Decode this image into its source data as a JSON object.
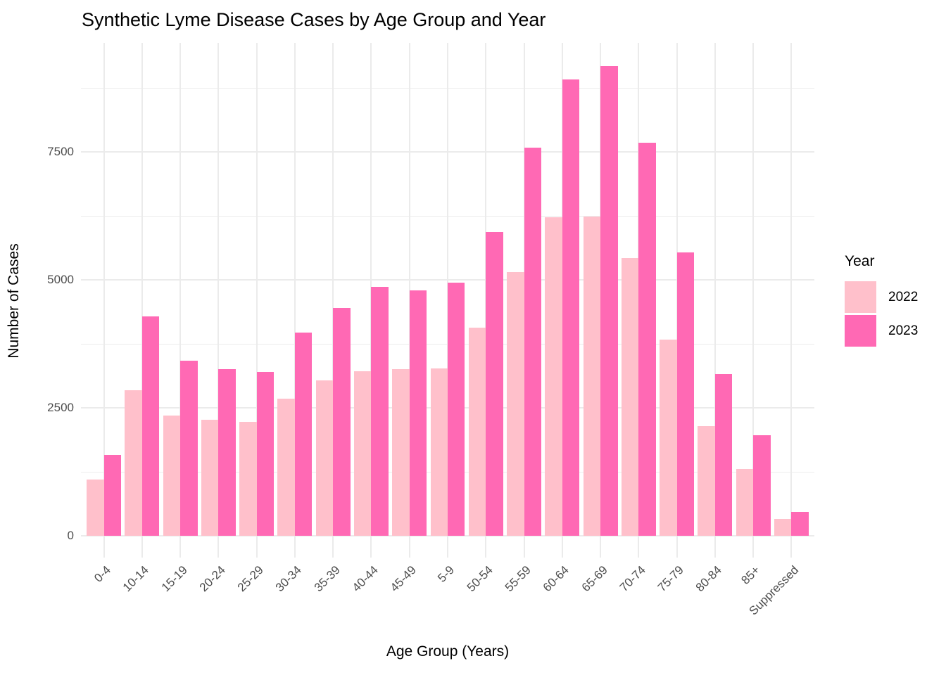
{
  "title": "Synthetic Lyme Disease Cases by Age Group and Year",
  "chart_data": {
    "type": "bar",
    "title": "Synthetic Lyme Disease Cases by Age Group and Year",
    "xlabel": "Age Group (Years)",
    "ylabel": "Number of Cases",
    "categories": [
      "0-4",
      "10-14",
      "15-19",
      "20-24",
      "25-29",
      "30-34",
      "35-39",
      "40-44",
      "45-49",
      "5-9",
      "50-54",
      "55-59",
      "60-64",
      "65-69",
      "70-74",
      "75-79",
      "80-84",
      "85+",
      "Suppressed"
    ],
    "series": [
      {
        "name": "2022",
        "color": "#FFC0CB",
        "values": [
          1100,
          2850,
          2350,
          2260,
          2230,
          2680,
          3040,
          3210,
          3260,
          3270,
          4070,
          5150,
          6220,
          6240,
          5430,
          3830,
          2140,
          1300,
          330
        ]
      },
      {
        "name": "2023",
        "color": "#FF69B4",
        "values": [
          1580,
          4290,
          3420,
          3260,
          3200,
          3970,
          4450,
          4860,
          4790,
          4950,
          5930,
          7580,
          8910,
          9170,
          7680,
          5540,
          3160,
          1960,
          470
        ]
      }
    ],
    "y_ticks": [
      0,
      2500,
      5000,
      7500
    ],
    "y_minor_ticks": [
      1250,
      3750,
      6250,
      8750
    ],
    "ylim": [
      0,
      9630
    ],
    "grid": true,
    "x_label_angle": 45,
    "legend": {
      "title": "Year",
      "position": "right"
    }
  },
  "style": {
    "gridline_color": "#ebebeb",
    "tick_label_color": "#4d4d4d",
    "text_color": "#000000",
    "background": "#ffffff"
  }
}
